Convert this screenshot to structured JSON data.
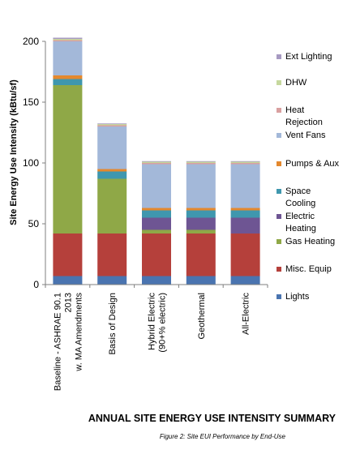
{
  "chart_data": {
    "type": "bar",
    "stacked": true,
    "title": "ANNUAL SITE ENERGY USE INTENSITY SUMMARY",
    "caption": "Figure 2: Site EUI Performance by End-Use",
    "ylabel": "Site Energy Use Intensity  (kBtu/sf)",
    "xlabel": "",
    "ylim": [
      0,
      200
    ],
    "yticks": [
      0,
      50,
      100,
      150,
      200
    ],
    "grid": false,
    "legend_position": "right",
    "categories": [
      [
        "Baseline - ASHRAE 90.1",
        "2013",
        "w. MA Amendments"
      ],
      [
        "Basis of Design"
      ],
      [
        "Hybrid Electric",
        "(90+% electric)"
      ],
      [
        "Geothermal"
      ],
      [
        "All-Electric"
      ]
    ],
    "series": [
      {
        "name": "Lights",
        "color": "#4a74b0",
        "values": [
          7,
          7,
          7,
          7,
          7
        ]
      },
      {
        "name": "Misc. Equip",
        "color": "#b5403b",
        "values": [
          35,
          35,
          35,
          35,
          35
        ]
      },
      {
        "name": "Gas Heating",
        "color": "#8fa847",
        "values": [
          122,
          45,
          3,
          3,
          0
        ]
      },
      {
        "name": "Electric Heating",
        "color": "#6e5593",
        "values": [
          0,
          0,
          10,
          10,
          13
        ]
      },
      {
        "name": "Space Cooling",
        "color": "#3f97ae",
        "values": [
          5,
          6,
          6,
          6,
          6
        ]
      },
      {
        "name": "Pumps & Aux",
        "color": "#e4882e",
        "values": [
          3,
          2,
          2,
          2,
          2
        ]
      },
      {
        "name": "Vent Fans",
        "color": "#a3b8d9",
        "values": [
          28,
          35,
          36,
          36,
          36
        ]
      },
      {
        "name": "Heat Rejection",
        "color": "#d9a0a0",
        "values": [
          1,
          1,
          1,
          1,
          1
        ]
      },
      {
        "name": "DHW",
        "color": "#c6d89e",
        "values": [
          1,
          1,
          1,
          1,
          1
        ]
      },
      {
        "name": "Ext Lighting",
        "color": "#a79ac2",
        "values": [
          1,
          0.5,
          0.5,
          0.5,
          0.5
        ]
      }
    ],
    "legend_order": [
      {
        "label": [
          "Ext Lighting"
        ],
        "series": 9
      },
      {
        "label": [
          "DHW"
        ],
        "series": 8
      },
      {
        "label": [
          "Heat",
          "Rejection"
        ],
        "series": 7
      },
      {
        "label": [
          "Vent Fans"
        ],
        "series": 6
      },
      {
        "label": [
          "Pumps & Aux"
        ],
        "series": 5
      },
      {
        "label": [
          "Space",
          "Cooling"
        ],
        "series": 4
      },
      {
        "label": [
          "Electric",
          "Heating"
        ],
        "series": 3
      },
      {
        "label": [
          "Gas Heating"
        ],
        "series": 2
      },
      {
        "label": [
          "Misc. Equip"
        ],
        "series": 1
      },
      {
        "label": [
          "Lights"
        ],
        "series": 0
      }
    ]
  }
}
